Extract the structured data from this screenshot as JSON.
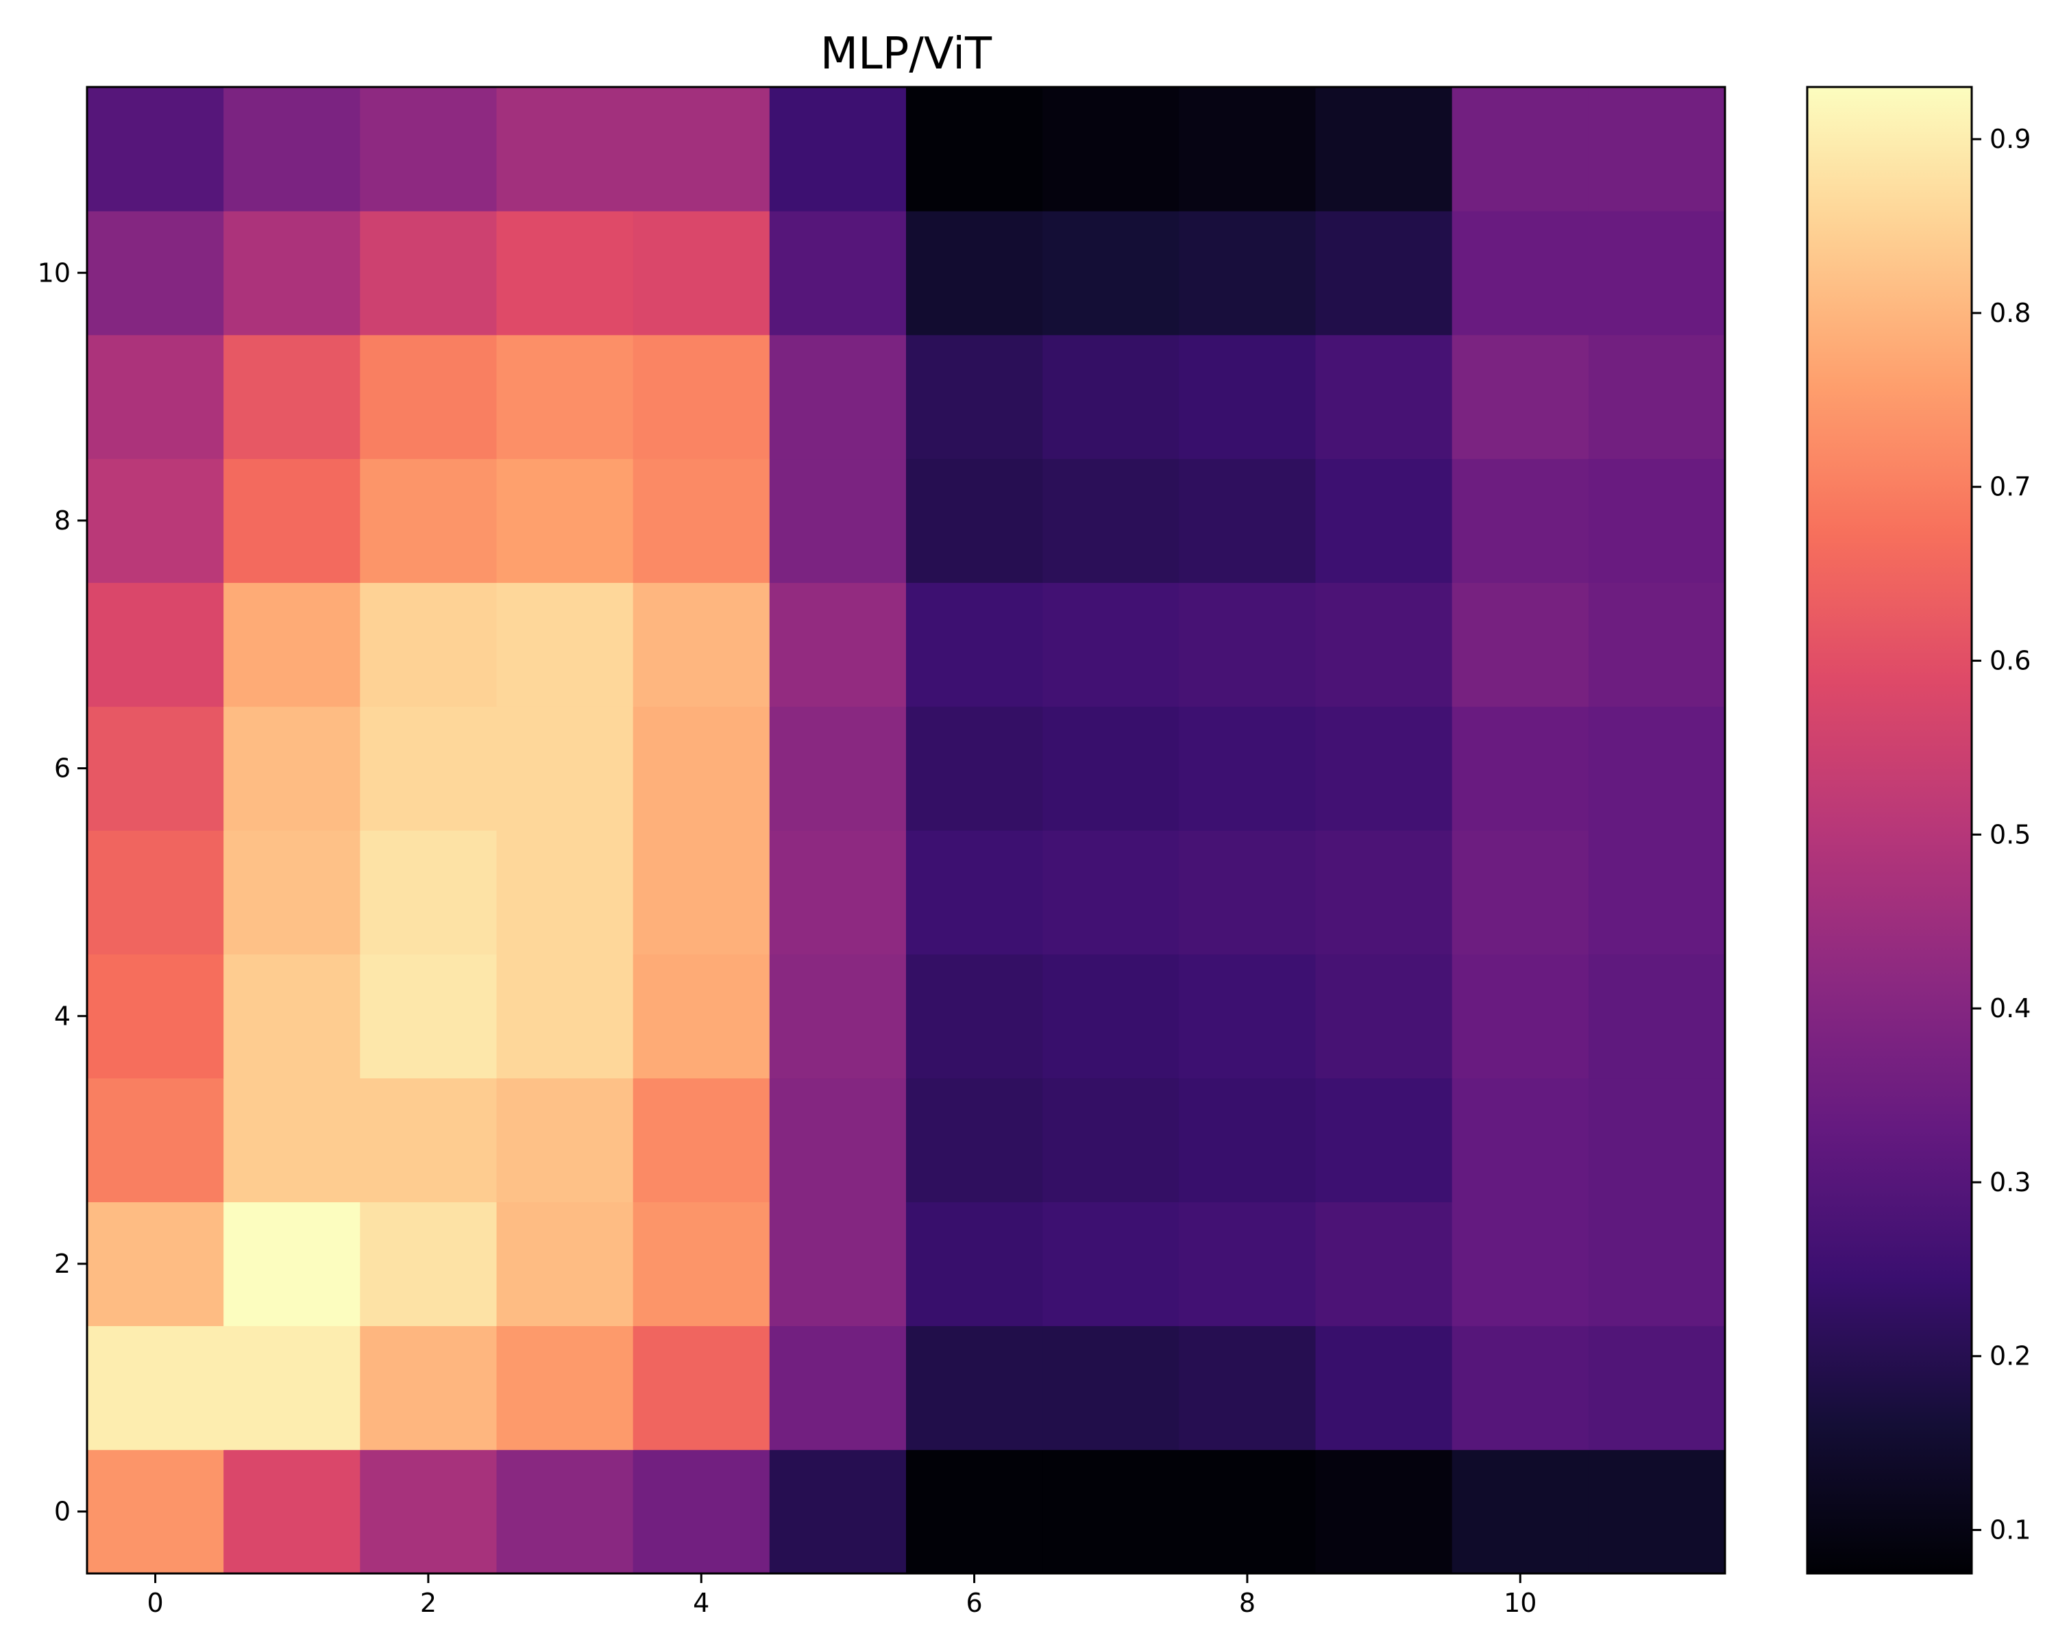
{
  "chart_data": {
    "type": "heatmap",
    "title": "MLP/ViT",
    "xlabel": "",
    "ylabel": "",
    "colormap": "magma",
    "x_ticks": [
      "0",
      "2",
      "4",
      "6",
      "8",
      "10"
    ],
    "y_ticks": [
      "0",
      "2",
      "4",
      "6",
      "8",
      "10"
    ],
    "colorbar_ticks": [
      "0.1",
      "0.2",
      "0.3",
      "0.4",
      "0.5",
      "0.6",
      "0.7",
      "0.8",
      "0.9"
    ],
    "vmin": 0.075,
    "vmax": 0.93,
    "y_origin": "bottom",
    "rows": [
      [
        0.74,
        0.58,
        0.47,
        0.41,
        0.36,
        0.2,
        0.08,
        0.08,
        0.08,
        0.09,
        0.14,
        0.14
      ],
      [
        0.9,
        0.9,
        0.8,
        0.75,
        0.65,
        0.36,
        0.19,
        0.19,
        0.2,
        0.24,
        0.3,
        0.29
      ],
      [
        0.81,
        0.93,
        0.88,
        0.81,
        0.74,
        0.4,
        0.24,
        0.25,
        0.26,
        0.28,
        0.33,
        0.32
      ],
      [
        0.7,
        0.84,
        0.84,
        0.82,
        0.72,
        0.4,
        0.22,
        0.23,
        0.24,
        0.25,
        0.33,
        0.32
      ],
      [
        0.67,
        0.84,
        0.89,
        0.86,
        0.78,
        0.41,
        0.23,
        0.24,
        0.25,
        0.27,
        0.34,
        0.32
      ],
      [
        0.65,
        0.82,
        0.88,
        0.86,
        0.79,
        0.42,
        0.25,
        0.26,
        0.27,
        0.28,
        0.35,
        0.33
      ],
      [
        0.62,
        0.81,
        0.86,
        0.86,
        0.79,
        0.41,
        0.23,
        0.24,
        0.25,
        0.26,
        0.34,
        0.33
      ],
      [
        0.58,
        0.78,
        0.85,
        0.86,
        0.8,
        0.43,
        0.25,
        0.26,
        0.27,
        0.28,
        0.37,
        0.35
      ],
      [
        0.51,
        0.66,
        0.74,
        0.76,
        0.72,
        0.38,
        0.2,
        0.21,
        0.22,
        0.25,
        0.35,
        0.34
      ],
      [
        0.48,
        0.62,
        0.7,
        0.73,
        0.71,
        0.38,
        0.21,
        0.23,
        0.24,
        0.27,
        0.38,
        0.36
      ],
      [
        0.4,
        0.48,
        0.55,
        0.59,
        0.58,
        0.3,
        0.15,
        0.16,
        0.17,
        0.19,
        0.34,
        0.34
      ],
      [
        0.3,
        0.38,
        0.42,
        0.46,
        0.46,
        0.25,
        0.08,
        0.09,
        0.1,
        0.13,
        0.36,
        0.36
      ]
    ]
  }
}
